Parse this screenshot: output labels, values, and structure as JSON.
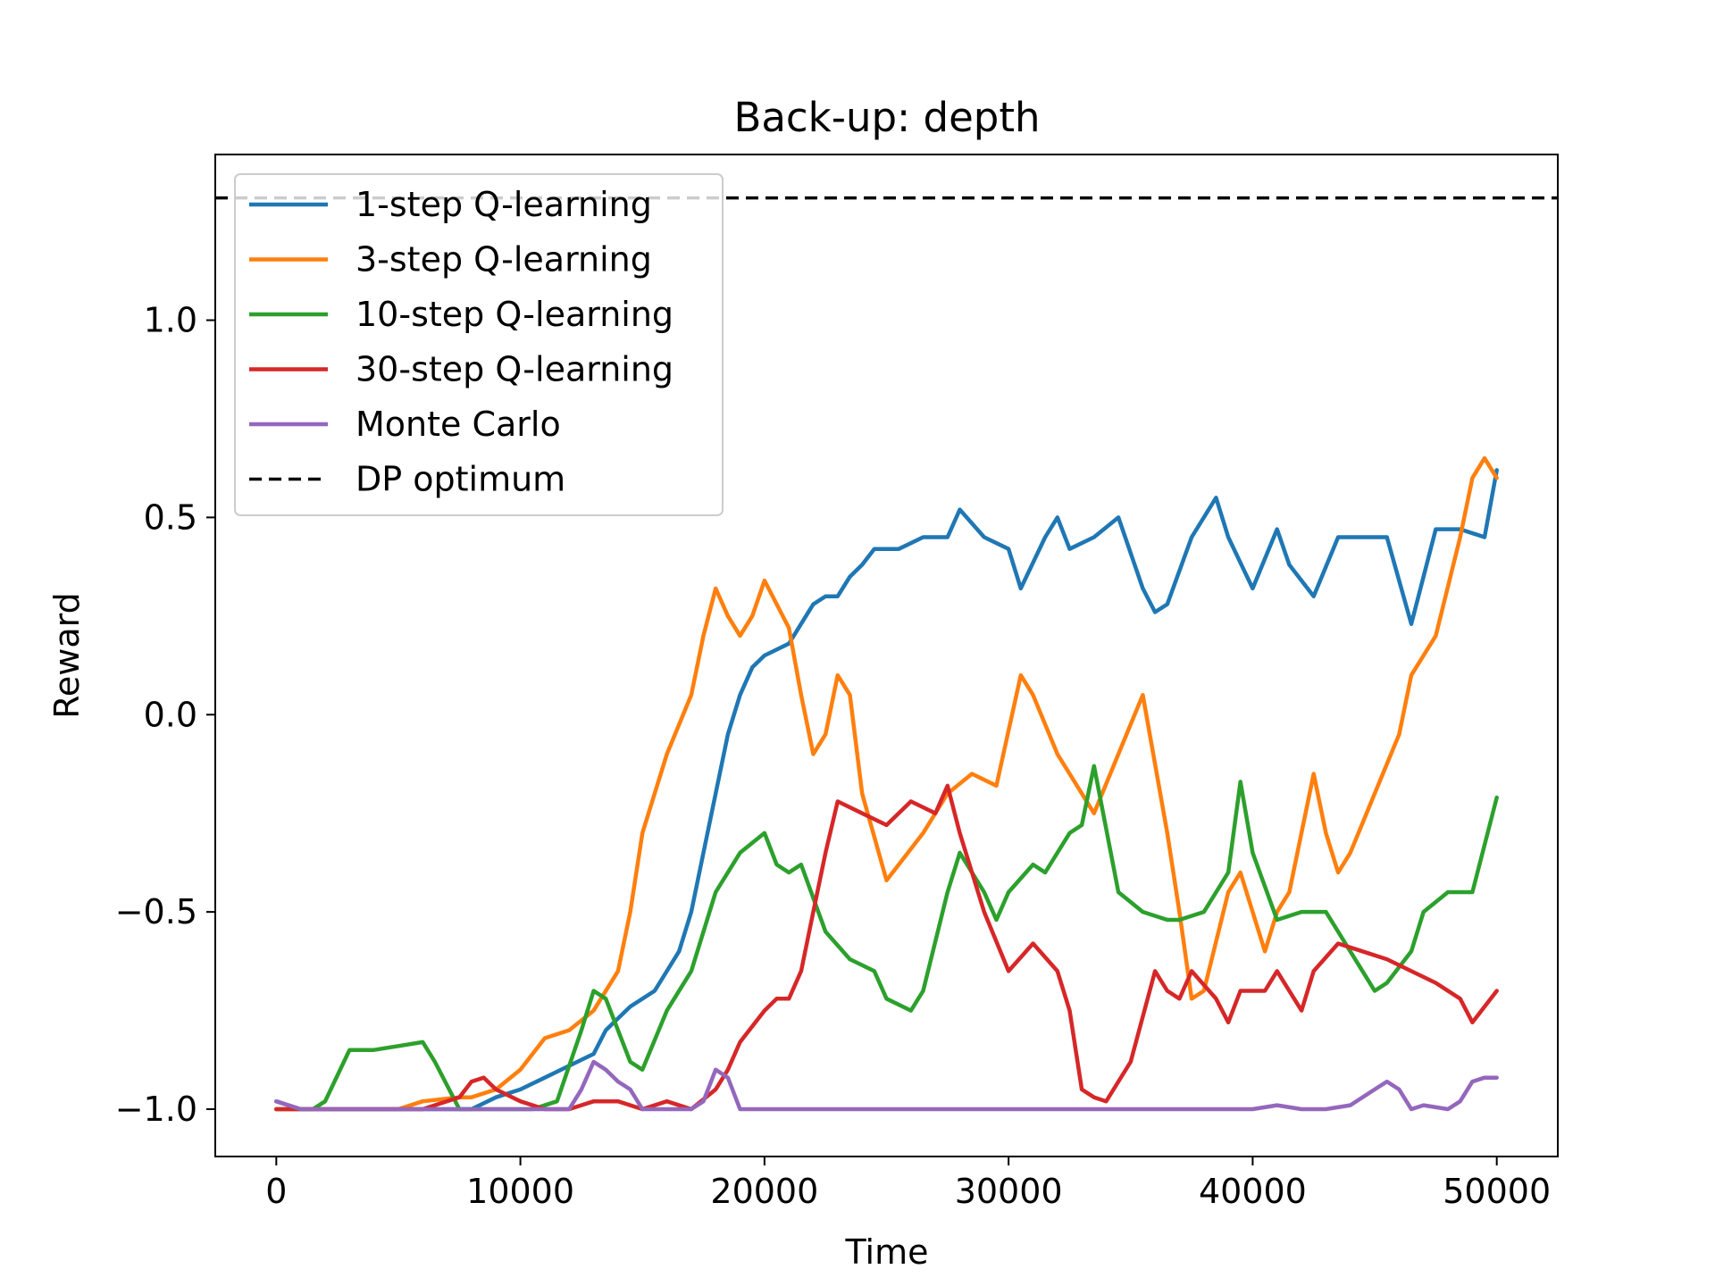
{
  "chart_data": {
    "type": "line",
    "title": "Back-up: depth",
    "xlabel": "Time",
    "ylabel": "Reward",
    "xlim": [
      -2500,
      52500
    ],
    "ylim": [
      -1.12,
      1.42
    ],
    "xticks": [
      0,
      10000,
      20000,
      30000,
      40000,
      50000
    ],
    "xtick_labels": [
      "0",
      "10000",
      "20000",
      "30000",
      "40000",
      "50000"
    ],
    "yticks": [
      -1.0,
      -0.5,
      0.0,
      0.5,
      1.0
    ],
    "ytick_labels": [
      "−1.0",
      "−0.5",
      "0.0",
      "0.5",
      "1.0"
    ],
    "grid": false,
    "legend_position": "top-left",
    "series": [
      {
        "name": "1-step Q-learning",
        "color": "#1f77b4",
        "style": "solid",
        "x": [
          0,
          1000,
          2000,
          4000,
          6000,
          8000,
          9000,
          10000,
          11000,
          12000,
          13000,
          13500,
          14500,
          15500,
          16500,
          17000,
          17500,
          18000,
          18500,
          19000,
          19500,
          20000,
          21000,
          22000,
          22500,
          23000,
          23500,
          24000,
          24500,
          25500,
          26500,
          27500,
          28000,
          29000,
          30000,
          30500,
          31500,
          32000,
          32500,
          33500,
          34500,
          35500,
          36000,
          36500,
          37500,
          38500,
          39000,
          40000,
          41000,
          41500,
          42500,
          43500,
          44500,
          45500,
          46500,
          47500,
          48500,
          49500,
          50000
        ],
        "y": [
          -0.98,
          -1.0,
          -1.0,
          -1.0,
          -1.0,
          -1.0,
          -0.97,
          -0.95,
          -0.92,
          -0.89,
          -0.86,
          -0.8,
          -0.74,
          -0.7,
          -0.6,
          -0.5,
          -0.35,
          -0.2,
          -0.05,
          0.05,
          0.12,
          0.15,
          0.18,
          0.28,
          0.3,
          0.3,
          0.35,
          0.38,
          0.42,
          0.42,
          0.45,
          0.45,
          0.52,
          0.45,
          0.42,
          0.32,
          0.45,
          0.5,
          0.42,
          0.45,
          0.5,
          0.32,
          0.26,
          0.28,
          0.45,
          0.55,
          0.45,
          0.32,
          0.47,
          0.38,
          0.3,
          0.45,
          0.45,
          0.45,
          0.23,
          0.47,
          0.47,
          0.45,
          0.62
        ]
      },
      {
        "name": "3-step Q-learning",
        "color": "#ff7f0e",
        "style": "solid",
        "x": [
          0,
          1000,
          3000,
          5000,
          6000,
          7500,
          8000,
          9000,
          10000,
          11000,
          12000,
          13000,
          14000,
          14500,
          15000,
          16000,
          17000,
          17500,
          18000,
          18500,
          19000,
          19500,
          20000,
          21000,
          21500,
          22000,
          22500,
          23000,
          23500,
          24000,
          25000,
          25500,
          26500,
          27500,
          28500,
          29500,
          30500,
          31000,
          32000,
          32500,
          33500,
          34500,
          35500,
          36500,
          37000,
          37500,
          38000,
          39000,
          39500,
          40500,
          41000,
          41500,
          42500,
          43000,
          43500,
          44000,
          45000,
          46000,
          46500,
          47500,
          48500,
          49000,
          49500,
          50000
        ],
        "y": [
          -1.0,
          -1.0,
          -1.0,
          -1.0,
          -0.98,
          -0.97,
          -0.97,
          -0.95,
          -0.9,
          -0.82,
          -0.8,
          -0.75,
          -0.65,
          -0.5,
          -0.3,
          -0.1,
          0.05,
          0.2,
          0.32,
          0.25,
          0.2,
          0.25,
          0.34,
          0.22,
          0.05,
          -0.1,
          -0.05,
          0.1,
          0.05,
          -0.2,
          -0.42,
          -0.38,
          -0.3,
          -0.2,
          -0.15,
          -0.18,
          0.1,
          0.05,
          -0.1,
          -0.15,
          -0.25,
          -0.1,
          0.05,
          -0.3,
          -0.5,
          -0.72,
          -0.7,
          -0.45,
          -0.4,
          -0.6,
          -0.5,
          -0.45,
          -0.15,
          -0.3,
          -0.4,
          -0.35,
          -0.2,
          -0.05,
          0.1,
          0.2,
          0.45,
          0.6,
          0.65,
          0.6
        ]
      },
      {
        "name": "10-step Q-learning",
        "color": "#2ca02c",
        "style": "solid",
        "x": [
          0,
          1500,
          2000,
          3000,
          4000,
          5000,
          6000,
          6500,
          7500,
          8500,
          9500,
          10500,
          11500,
          12500,
          13000,
          13500,
          14500,
          15000,
          16000,
          17000,
          18000,
          19000,
          20000,
          20500,
          21000,
          21500,
          22500,
          23500,
          24500,
          25000,
          26000,
          26500,
          27500,
          28000,
          29000,
          29500,
          30000,
          31000,
          31500,
          32500,
          33000,
          33500,
          34500,
          35500,
          36500,
          37000,
          38000,
          39000,
          39500,
          40000,
          41000,
          42000,
          43000,
          44000,
          45000,
          45500,
          46500,
          47000,
          48000,
          49000,
          50000
        ],
        "y": [
          -1.0,
          -1.0,
          -0.98,
          -0.85,
          -0.85,
          -0.84,
          -0.83,
          -0.88,
          -1.0,
          -1.0,
          -1.0,
          -1.0,
          -0.98,
          -0.8,
          -0.7,
          -0.72,
          -0.88,
          -0.9,
          -0.75,
          -0.65,
          -0.45,
          -0.35,
          -0.3,
          -0.38,
          -0.4,
          -0.38,
          -0.55,
          -0.62,
          -0.65,
          -0.72,
          -0.75,
          -0.7,
          -0.45,
          -0.35,
          -0.45,
          -0.52,
          -0.45,
          -0.38,
          -0.4,
          -0.3,
          -0.28,
          -0.13,
          -0.45,
          -0.5,
          -0.52,
          -0.52,
          -0.5,
          -0.4,
          -0.17,
          -0.35,
          -0.52,
          -0.5,
          -0.5,
          -0.6,
          -0.7,
          -0.68,
          -0.6,
          -0.5,
          -0.45,
          -0.45,
          -0.21
        ]
      },
      {
        "name": "30-step Q-learning",
        "color": "#d62728",
        "style": "solid",
        "x": [
          0,
          2000,
          4000,
          6000,
          7500,
          8000,
          8500,
          9000,
          10000,
          11000,
          12000,
          13000,
          14000,
          15000,
          16000,
          17000,
          18000,
          18500,
          19000,
          20000,
          20500,
          21000,
          21500,
          22000,
          22500,
          23000,
          24000,
          25000,
          26000,
          27000,
          27500,
          28000,
          29000,
          30000,
          31000,
          32000,
          32500,
          33000,
          33500,
          34000,
          35000,
          36000,
          36500,
          37000,
          37500,
          38500,
          39000,
          39500,
          40500,
          41000,
          42000,
          42500,
          43500,
          44500,
          45500,
          46500,
          47500,
          48500,
          49000,
          50000
        ],
        "y": [
          -1.0,
          -1.0,
          -1.0,
          -1.0,
          -0.97,
          -0.93,
          -0.92,
          -0.95,
          -0.98,
          -1.0,
          -1.0,
          -0.98,
          -0.98,
          -1.0,
          -0.98,
          -1.0,
          -0.95,
          -0.9,
          -0.83,
          -0.75,
          -0.72,
          -0.72,
          -0.65,
          -0.5,
          -0.35,
          -0.22,
          -0.25,
          -0.28,
          -0.22,
          -0.25,
          -0.18,
          -0.3,
          -0.5,
          -0.65,
          -0.58,
          -0.65,
          -0.75,
          -0.95,
          -0.97,
          -0.98,
          -0.88,
          -0.65,
          -0.7,
          -0.72,
          -0.65,
          -0.72,
          -0.78,
          -0.7,
          -0.7,
          -0.65,
          -0.75,
          -0.65,
          -0.58,
          -0.6,
          -0.62,
          -0.65,
          -0.68,
          -0.72,
          -0.78,
          -0.7
        ]
      },
      {
        "name": "Monte Carlo",
        "color": "#9467bd",
        "style": "solid",
        "x": [
          0,
          1000,
          2000,
          4000,
          6000,
          8000,
          10000,
          12000,
          12500,
          13000,
          13500,
          14000,
          14500,
          15000,
          16000,
          17000,
          17500,
          18000,
          18500,
          19000,
          20000,
          25000,
          30000,
          35000,
          38000,
          40000,
          41000,
          42000,
          43000,
          44000,
          44500,
          45000,
          45500,
          46000,
          46500,
          47000,
          48000,
          48500,
          49000,
          49500,
          50000
        ],
        "y": [
          -0.98,
          -1.0,
          -1.0,
          -1.0,
          -1.0,
          -1.0,
          -1.0,
          -1.0,
          -0.95,
          -0.88,
          -0.9,
          -0.93,
          -0.95,
          -1.0,
          -1.0,
          -1.0,
          -0.98,
          -0.9,
          -0.92,
          -1.0,
          -1.0,
          -1.0,
          -1.0,
          -1.0,
          -1.0,
          -1.0,
          -0.99,
          -1.0,
          -1.0,
          -0.99,
          -0.97,
          -0.95,
          -0.93,
          -0.95,
          -1.0,
          -0.99,
          -1.0,
          -0.98,
          -0.93,
          -0.92,
          -0.92
        ]
      },
      {
        "name": "DP optimum",
        "color": "#000000",
        "style": "dashed",
        "x": [
          -2500,
          52500
        ],
        "y": [
          1.31,
          1.31
        ]
      }
    ]
  }
}
